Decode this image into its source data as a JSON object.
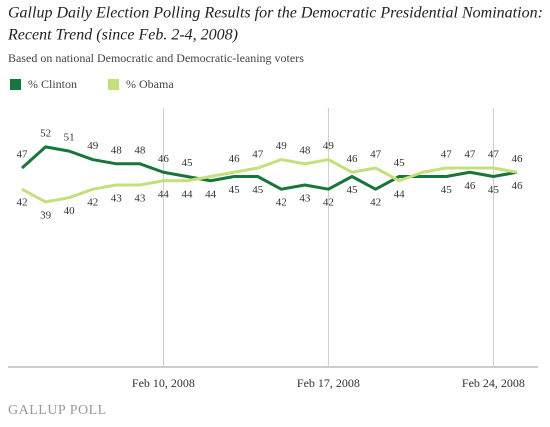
{
  "chart_data": {
    "type": "line",
    "title": "Gallup Daily Election Polling Results for the Democratic Presidential Nomination:",
    "title_line2": "Recent Trend (since Feb. 2-4, 2008)",
    "subtitle": "Based on national Democratic and Democratic-leaning voters",
    "source": "GALLUP POLL",
    "x": [
      "2008-02-04",
      "2008-02-05",
      "2008-02-06",
      "2008-02-07",
      "2008-02-08",
      "2008-02-09",
      "2008-02-10",
      "2008-02-11",
      "2008-02-12",
      "2008-02-13",
      "2008-02-14",
      "2008-02-15",
      "2008-02-16",
      "2008-02-17",
      "2008-02-18",
      "2008-02-19",
      "2008-02-20",
      "2008-02-21",
      "2008-02-22",
      "2008-02-23",
      "2008-02-24",
      "2008-02-25"
    ],
    "xticks": [
      {
        "value": "2008-02-10",
        "label": "Feb 10, 2008"
      },
      {
        "value": "2008-02-17",
        "label": "Feb 17, 2008"
      },
      {
        "value": "2008-02-24",
        "label": "Feb 24, 2008"
      }
    ],
    "ylim": [
      0,
      60
    ],
    "grid": true,
    "legend": "top-left",
    "series": [
      {
        "name": "% Clinton",
        "color": "#17773a",
        "values": [
          47,
          52,
          51,
          49,
          48,
          48,
          46,
          45,
          44,
          45,
          45,
          42,
          43,
          42,
          45,
          42,
          45,
          45,
          45,
          46,
          45,
          46
        ],
        "value_labels": [
          "47",
          "52",
          "51",
          "49",
          "48",
          "48",
          "46",
          "45",
          "44",
          "45",
          "45",
          "42",
          "43",
          "42",
          "45",
          "42",
          "45",
          null,
          "45",
          "46",
          "45",
          "46"
        ]
      },
      {
        "name": "% Obama",
        "color": "#c3e07a",
        "values": [
          42,
          39,
          40,
          42,
          43,
          43,
          44,
          44,
          45,
          46,
          47,
          49,
          48,
          49,
          46,
          47,
          44,
          46,
          47,
          47,
          47,
          46
        ],
        "value_labels": [
          "42",
          "39",
          "40",
          "42",
          "43",
          "43",
          "44",
          "44",
          null,
          "46",
          "47",
          "49",
          "48",
          "49",
          "46",
          "47",
          "44",
          null,
          "47",
          "47",
          "47",
          "46"
        ]
      }
    ]
  }
}
